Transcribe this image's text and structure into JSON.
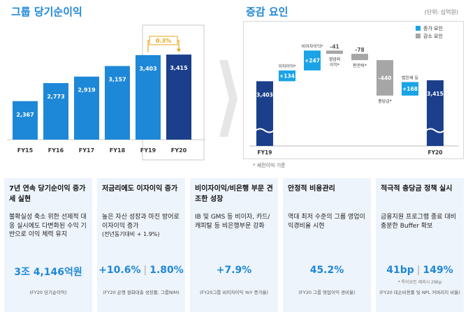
{
  "left_title": "그룹 당기순이익",
  "right_title": "증감 요인",
  "unit": "(단위: 십억원)",
  "note": "* 세전이익 기준",
  "chart_data": [
    {
      "type": "bar",
      "categories": [
        "FY15",
        "FY16",
        "FY17",
        "FY18",
        "FY19",
        "FY20"
      ],
      "values": [
        2367,
        2773,
        2919,
        3157,
        3403,
        3415
      ],
      "value_labels": [
        "2,367",
        "2,773",
        "2,919",
        "3,157",
        "3,403",
        "3,415"
      ],
      "growth_label": "0.3%",
      "colors": {
        "normal": "#1e88d8",
        "last": "#1b3f8b"
      }
    },
    {
      "type": "bar",
      "subtype": "waterfall",
      "legend": {
        "increase": "증가 요인",
        "decrease": "감소 요인",
        "position": "top-right"
      },
      "steps": [
        {
          "label": "FY19",
          "kind": "total",
          "value": 3403,
          "text": "3,403",
          "axis_label": "FY19"
        },
        {
          "label": "이자이익*",
          "kind": "increase",
          "value": 134,
          "text": "+134"
        },
        {
          "label": "비이자이익*",
          "kind": "increase",
          "value": 247,
          "text": "+247"
        },
        {
          "label": "영업외\n이익*",
          "kind": "decrease",
          "value": -41,
          "text": "-41"
        },
        {
          "label": "판관비*",
          "kind": "decrease",
          "value": -78,
          "text": "-78"
        },
        {
          "label": "충당금*",
          "kind": "decrease",
          "value": -440,
          "text": "-440"
        },
        {
          "label": "법인세 등",
          "kind": "increase",
          "value": 168,
          "text": "+168"
        },
        {
          "label": "FY20",
          "kind": "total",
          "value": 3415,
          "text": "3,415",
          "axis_label": "FY20"
        }
      ],
      "colors": {
        "total": "#1b3f8b",
        "increase": "#1aa3e6",
        "decrease": "#a6a6a6"
      }
    }
  ],
  "boxes": [
    {
      "title": "7년 연속 당기순이익 증가세 실현",
      "body": "불확실성 축소 위한 선제적 대응 실시에도 다변화된 수익 기반으로 이익 체력 유지",
      "metric": [
        "3조 4,146억원"
      ],
      "sub": "",
      "foot": "(FY20 당기순이익)"
    },
    {
      "title": "저금리에도 이자이익 증가",
      "body": "높은 자산 성장과 마진 방어로 이자이익 증가",
      "body_small": "(전년동기대비 + 1.9%)",
      "metric": [
        "+10.6%",
        "1.80%"
      ],
      "sub": "",
      "foot": "(FY20 은행 원화대출 성장률, 그룹NIM)"
    },
    {
      "title": "비이자이익/비은행 부문 견조한 성장",
      "body": "IB 및 GMS 등 비이자, 카드/캐피탈 등 비은행부문 강화",
      "metric": [
        "+7.9%"
      ],
      "sub": "",
      "foot": "(FY20그룹 비이자이익 YoY 증가율)"
    },
    {
      "title": "안정적 비용관리",
      "body": "역대 최저 수준의 그룹 영업이익경비율 시현",
      "metric": [
        "45.2%"
      ],
      "sub": "",
      "foot": "(FY20 그룹 영업이익 경비율)"
    },
    {
      "title": "적극적 충당금 정책 실시",
      "body": "금융지원 프로그램 종료 대비 충분한 Buffer 확보",
      "metric": [
        "41bp",
        "149%"
      ],
      "sub": "* 특이요인 제외시 29bp",
      "foot": "(FY20 대손비용률 및 NPL 커버리지 비율)"
    }
  ]
}
